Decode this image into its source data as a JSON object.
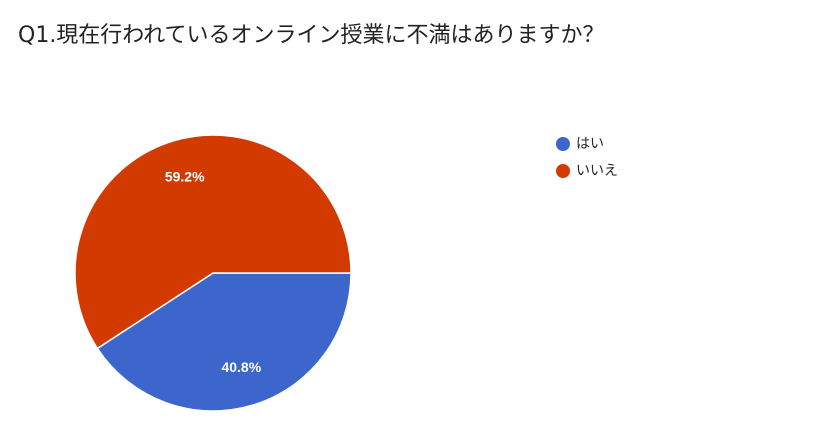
{
  "chart_data": {
    "type": "pie",
    "title": "Q1.現在行われているオンライン授業に不満はありますか？",
    "categories": [
      "はい",
      "いいえ"
    ],
    "values": [
      40.8,
      59.2
    ],
    "value_labels": [
      "40.8%",
      "59.2%"
    ],
    "colors": [
      "#3c66cc",
      "#d23a00"
    ],
    "legend": "right"
  }
}
